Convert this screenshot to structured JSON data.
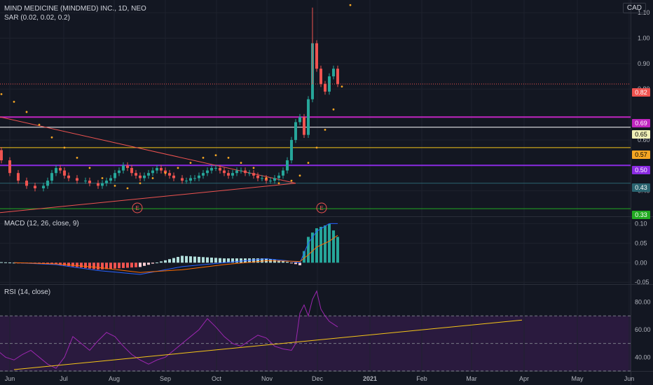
{
  "header": {
    "title": "MIND MEDICINE (MINDMED) INC., 1D, NEO",
    "currency": "CAD",
    "sar_label": "SAR (0.02, 0.02, 0.2)"
  },
  "macd": {
    "label": "MACD (12, 26, close, 9)"
  },
  "rsi": {
    "label": "RSI (14, close)"
  },
  "price_axis": {
    "ticks": [
      "1.10",
      "1.00",
      "0.90",
      "0.80",
      "0.60",
      "0.40"
    ],
    "badges": [
      {
        "text": "0.82",
        "bg": "#ef5350",
        "fg": "#ffffff"
      },
      {
        "text": "0.69",
        "bg": "#c025c0",
        "fg": "#ffffff"
      },
      {
        "text": "0.65",
        "bg": "#f0f0b8",
        "fg": "#000000"
      },
      {
        "text": "0.57",
        "bg": "#f5a623",
        "fg": "#000000"
      },
      {
        "text": "0.50",
        "bg": "#8a2be2",
        "fg": "#ffffff"
      },
      {
        "text": "0.43",
        "bg": "#2a6470",
        "fg": "#ffffff"
      },
      {
        "text": "0.33",
        "bg": "#22aa22",
        "fg": "#ffffff"
      }
    ]
  },
  "macd_axis": {
    "ticks": [
      "0.10",
      "0.05",
      "0.00",
      "-0.05"
    ]
  },
  "rsi_axis": {
    "ticks": [
      "80.00",
      "60.00",
      "40.00"
    ]
  },
  "time_axis": {
    "labels": [
      "Jun",
      "Jul",
      "Aug",
      "Sep",
      "Oct",
      "Nov",
      "Dec",
      "2021",
      "Feb",
      "Mar",
      "Apr",
      "May",
      "Jun"
    ]
  },
  "events": {
    "marker": "E"
  },
  "colors": {
    "background": "#131722",
    "up": "#26a69a",
    "down": "#ef5350",
    "sar": "#f5a623",
    "macd_line": "#2962ff",
    "signal_line": "#ff6d00",
    "rsi_line": "#9c27b0",
    "rsi_band": "#2a1a3e"
  },
  "chart_data": {
    "type": "candlestick",
    "x_labels": [
      "Jun",
      "Jul",
      "Aug",
      "Sep",
      "Oct",
      "Nov",
      "Dec",
      "2021",
      "Feb",
      "Mar",
      "Apr",
      "May",
      "Jun"
    ],
    "price_range": [
      0.3,
      1.15
    ],
    "price_ticks": [
      1.1,
      1.0,
      0.9,
      0.8,
      0.6,
      0.4
    ],
    "horizontal_levels": [
      0.69,
      0.65,
      0.57,
      0.5,
      0.43,
      0.33
    ],
    "last_price": 0.82,
    "price_path": [
      [
        -6,
        0.58
      ],
      [
        -5,
        0.56
      ],
      [
        -3,
        0.52
      ],
      [
        -1,
        0.47
      ],
      [
        1,
        0.44
      ],
      [
        3,
        0.42
      ],
      [
        5,
        0.41
      ],
      [
        7,
        0.42
      ],
      [
        8,
        0.44
      ],
      [
        9,
        0.47
      ],
      [
        10,
        0.49
      ],
      [
        11,
        0.48
      ],
      [
        12,
        0.46
      ],
      [
        13,
        0.45
      ],
      [
        15,
        0.44
      ],
      [
        17,
        0.44
      ],
      [
        18,
        0.43
      ],
      [
        20,
        0.42
      ],
      [
        21,
        0.43
      ],
      [
        22,
        0.44
      ],
      [
        23,
        0.45
      ],
      [
        24,
        0.47
      ],
      [
        25,
        0.48
      ],
      [
        26,
        0.5
      ],
      [
        27,
        0.49
      ],
      [
        28,
        0.47
      ],
      [
        29,
        0.46
      ],
      [
        30,
        0.45
      ],
      [
        31,
        0.46
      ],
      [
        32,
        0.47
      ],
      [
        33,
        0.48
      ],
      [
        34,
        0.49
      ],
      [
        35,
        0.48
      ],
      [
        36,
        0.47
      ],
      [
        37,
        0.46
      ],
      [
        38,
        0.45
      ],
      [
        40,
        0.44
      ],
      [
        41,
        0.44
      ],
      [
        42,
        0.45
      ],
      [
        43,
        0.45
      ],
      [
        44,
        0.46
      ],
      [
        45,
        0.47
      ],
      [
        46,
        0.48
      ],
      [
        47,
        0.49
      ],
      [
        48,
        0.49
      ],
      [
        49,
        0.48
      ],
      [
        50,
        0.47
      ],
      [
        51,
        0.46
      ],
      [
        52,
        0.47
      ],
      [
        53,
        0.48
      ],
      [
        54,
        0.48
      ],
      [
        55,
        0.47
      ],
      [
        56,
        0.47
      ],
      [
        57,
        0.46
      ],
      [
        58,
        0.45
      ],
      [
        59,
        0.45
      ],
      [
        60,
        0.44
      ],
      [
        61,
        0.44
      ],
      [
        62,
        0.45
      ],
      [
        63,
        0.46
      ],
      [
        64,
        0.48
      ],
      [
        65,
        0.52
      ],
      [
        66,
        0.6
      ],
      [
        67,
        0.67
      ],
      [
        68,
        0.69
      ],
      [
        69,
        0.62
      ],
      [
        70,
        0.76
      ],
      [
        71,
        0.98
      ],
      [
        72,
        0.88
      ],
      [
        73,
        0.82
      ],
      [
        74,
        0.79
      ],
      [
        75,
        0.85
      ],
      [
        76,
        0.88
      ],
      [
        77,
        0.82
      ]
    ],
    "sar_path": [
      [
        -6,
        0.81
      ],
      [
        -3,
        0.78
      ],
      [
        0,
        0.75
      ],
      [
        3,
        0.71
      ],
      [
        6,
        0.66
      ],
      [
        9,
        0.61
      ],
      [
        12,
        0.57
      ],
      [
        15,
        0.53
      ],
      [
        18,
        0.49
      ],
      [
        21,
        0.45
      ],
      [
        24,
        0.42
      ],
      [
        27,
        0.41
      ],
      [
        30,
        0.43
      ],
      [
        33,
        0.45
      ],
      [
        36,
        0.47
      ],
      [
        39,
        0.49
      ],
      [
        42,
        0.51
      ],
      [
        45,
        0.53
      ],
      [
        48,
        0.54
      ],
      [
        51,
        0.53
      ],
      [
        54,
        0.51
      ],
      [
        57,
        0.49
      ],
      [
        60,
        0.45
      ],
      [
        63,
        0.43
      ],
      [
        66,
        0.44
      ],
      [
        68,
        0.46
      ],
      [
        70,
        0.51
      ],
      [
        72,
        0.57
      ],
      [
        74,
        0.64
      ],
      [
        76,
        0.72
      ],
      [
        78,
        0.81
      ],
      [
        80,
        1.13
      ]
    ],
    "trendlines": [
      {
        "from": [
          -6,
          0.7
        ],
        "to": [
          67,
          0.43
        ]
      },
      {
        "from": [
          -6,
          0.31
        ],
        "to": [
          67,
          0.43
        ]
      }
    ],
    "macd_range": [
      -0.055,
      0.115
    ],
    "macd_ticks": [
      0.1,
      0.05,
      0.0,
      -0.05
    ],
    "macd_path": [
      [
        0,
        0.0
      ],
      [
        10,
        -0.005
      ],
      [
        20,
        -0.02
      ],
      [
        30,
        -0.03
      ],
      [
        40,
        -0.01
      ],
      [
        50,
        0.0
      ],
      [
        60,
        0.01
      ],
      [
        65,
        0.005
      ],
      [
        68,
        0.0
      ],
      [
        70,
        0.05
      ],
      [
        72,
        0.08
      ],
      [
        75,
        0.1
      ],
      [
        77,
        0.1
      ]
    ],
    "signal_path": [
      [
        0,
        0.0
      ],
      [
        10,
        -0.003
      ],
      [
        20,
        -0.012
      ],
      [
        30,
        -0.025
      ],
      [
        40,
        -0.018
      ],
      [
        50,
        -0.005
      ],
      [
        60,
        0.005
      ],
      [
        65,
        0.004
      ],
      [
        68,
        0.003
      ],
      [
        70,
        0.02
      ],
      [
        72,
        0.04
      ],
      [
        75,
        0.055
      ],
      [
        77,
        0.07
      ]
    ],
    "rsi_range": [
      30,
      92
    ],
    "rsi_ticks": [
      80,
      60,
      40
    ],
    "rsi_band": [
      30,
      70
    ],
    "rsi_path": [
      [
        -6,
        50
      ],
      [
        -4,
        45
      ],
      [
        -2,
        40
      ],
      [
        0,
        38
      ],
      [
        2,
        42
      ],
      [
        4,
        45
      ],
      [
        6,
        40
      ],
      [
        8,
        35
      ],
      [
        10,
        32
      ],
      [
        12,
        40
      ],
      [
        14,
        55
      ],
      [
        16,
        50
      ],
      [
        18,
        45
      ],
      [
        20,
        52
      ],
      [
        22,
        58
      ],
      [
        24,
        55
      ],
      [
        26,
        48
      ],
      [
        28,
        42
      ],
      [
        30,
        38
      ],
      [
        32,
        35
      ],
      [
        34,
        38
      ],
      [
        36,
        40
      ],
      [
        38,
        45
      ],
      [
        40,
        50
      ],
      [
        42,
        55
      ],
      [
        44,
        60
      ],
      [
        46,
        68
      ],
      [
        48,
        62
      ],
      [
        50,
        55
      ],
      [
        52,
        50
      ],
      [
        54,
        48
      ],
      [
        56,
        52
      ],
      [
        58,
        56
      ],
      [
        60,
        54
      ],
      [
        62,
        48
      ],
      [
        64,
        46
      ],
      [
        66,
        45
      ],
      [
        67,
        50
      ],
      [
        68,
        72
      ],
      [
        69,
        78
      ],
      [
        70,
        70
      ],
      [
        71,
        82
      ],
      [
        72,
        88
      ],
      [
        73,
        75
      ],
      [
        74,
        70
      ],
      [
        75,
        66
      ],
      [
        76,
        64
      ],
      [
        77,
        62
      ]
    ],
    "rsi_trendline": {
      "from": [
        0,
        31
      ],
      "to": [
        140,
        67
      ]
    }
  }
}
